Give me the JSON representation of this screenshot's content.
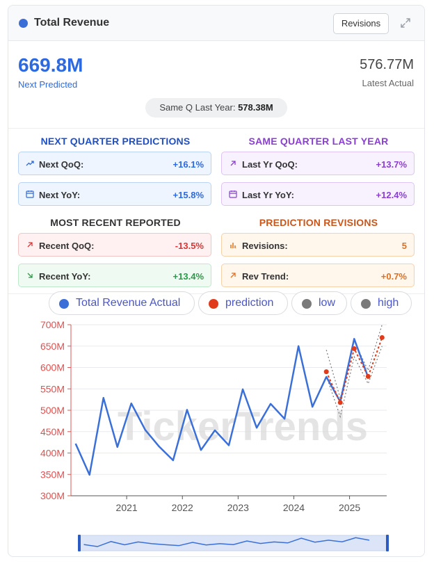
{
  "header": {
    "title": "Total Revenue",
    "revisions_button": "Revisions",
    "expand_icon": "expand-icon"
  },
  "summary": {
    "predicted_value": "669.8M",
    "predicted_label": "Next Predicted",
    "actual_value": "576.77M",
    "actual_label": "Latest Actual",
    "same_q_label": "Same Q Last Year:",
    "same_q_value": "578.38M"
  },
  "sections": {
    "next_quarter": {
      "title": "NEXT QUARTER PREDICTIONS",
      "color": "#1f4fc2",
      "items": [
        {
          "icon": "trend-up-icon",
          "label": "Next QoQ:",
          "value": "+16.1%",
          "color": "#2d6ae0"
        },
        {
          "icon": "calendar-icon",
          "label": "Next YoY:",
          "value": "+15.8%",
          "color": "#2d6ae0"
        }
      ]
    },
    "same_quarter": {
      "title": "SAME QUARTER LAST YEAR",
      "color": "#8a3fd1",
      "items": [
        {
          "icon": "arrow-up-right-icon",
          "label": "Last Yr QoQ:",
          "value": "+13.7%",
          "color": "#8a3fd1"
        },
        {
          "icon": "calendar-icon",
          "label": "Last Yr YoY:",
          "value": "+12.4%",
          "color": "#8a3fd1"
        }
      ]
    },
    "recent": {
      "title": "MOST RECENT REPORTED",
      "color": "#333333",
      "items": [
        {
          "icon": "arrow-up-right-icon",
          "label": "Recent QoQ:",
          "value": "-13.5%",
          "color": "#d93636"
        },
        {
          "icon": "arrow-down-right-icon",
          "label": "Recent YoY:",
          "value": "+13.4%",
          "color": "#2a9a4a"
        }
      ]
    },
    "revisions": {
      "title": "PREDICTION REVISIONS",
      "color": "#c9561a",
      "items": [
        {
          "icon": "bar-chart-icon",
          "label": "Revisions:",
          "value": "5",
          "color": "#e0701f"
        },
        {
          "icon": "arrow-up-right-icon",
          "label": "Rev Trend:",
          "value": "+0.7%",
          "color": "#e0701f"
        }
      ]
    }
  },
  "legend": [
    {
      "label": "Total Revenue Actual",
      "color": "#3b6fd8"
    },
    {
      "label": "prediction",
      "color": "#e03c1c"
    },
    {
      "label": "low",
      "color": "#7a7a7a"
    },
    {
      "label": "high",
      "color": "#7a7a7a"
    }
  ],
  "watermark": "TickerTrends",
  "chart_data": {
    "type": "line",
    "title": "",
    "xlabel": "",
    "ylabel": "",
    "ylim": [
      300,
      700
    ],
    "yticks": [
      "700M",
      "650M",
      "600M",
      "550M",
      "500M",
      "450M",
      "400M",
      "350M",
      "300M"
    ],
    "xticks": [
      "2021",
      "2022",
      "2023",
      "2024",
      "2025"
    ],
    "x_range": [
      "2020-01",
      "2025-09"
    ],
    "series": [
      {
        "name": "Total Revenue Actual",
        "color": "#3b6fd8",
        "x": [
          "2020-02",
          "2020-05",
          "2020-08",
          "2020-11",
          "2021-02",
          "2021-05",
          "2021-08",
          "2021-11",
          "2022-02",
          "2022-05",
          "2022-08",
          "2022-11",
          "2023-02",
          "2023-05",
          "2023-08",
          "2023-11",
          "2024-02",
          "2024-05",
          "2024-08",
          "2024-11",
          "2025-02",
          "2025-05"
        ],
        "values": [
          422,
          349,
          529,
          414,
          516,
          454,
          415,
          383,
          501,
          407,
          453,
          418,
          549,
          459,
          515,
          480,
          650,
          508,
          578,
          520,
          667,
          577
        ]
      },
      {
        "name": "prediction",
        "color": "#e03c1c",
        "x": [
          "2024-08",
          "2024-11",
          "2025-02",
          "2025-05",
          "2025-08"
        ],
        "values": [
          590,
          518,
          644,
          579,
          670
        ]
      },
      {
        "name": "low",
        "color": "#7a7a7a",
        "x": [
          "2024-08",
          "2024-11",
          "2025-02",
          "2025-05",
          "2025-08"
        ],
        "values": [
          580,
          485,
          625,
          562,
          650
        ]
      },
      {
        "name": "high",
        "color": "#7a7a7a",
        "x": [
          "2024-08",
          "2024-11",
          "2025-02",
          "2025-05",
          "2025-08"
        ],
        "values": [
          641,
          528,
          662,
          593,
          700
        ]
      }
    ]
  }
}
